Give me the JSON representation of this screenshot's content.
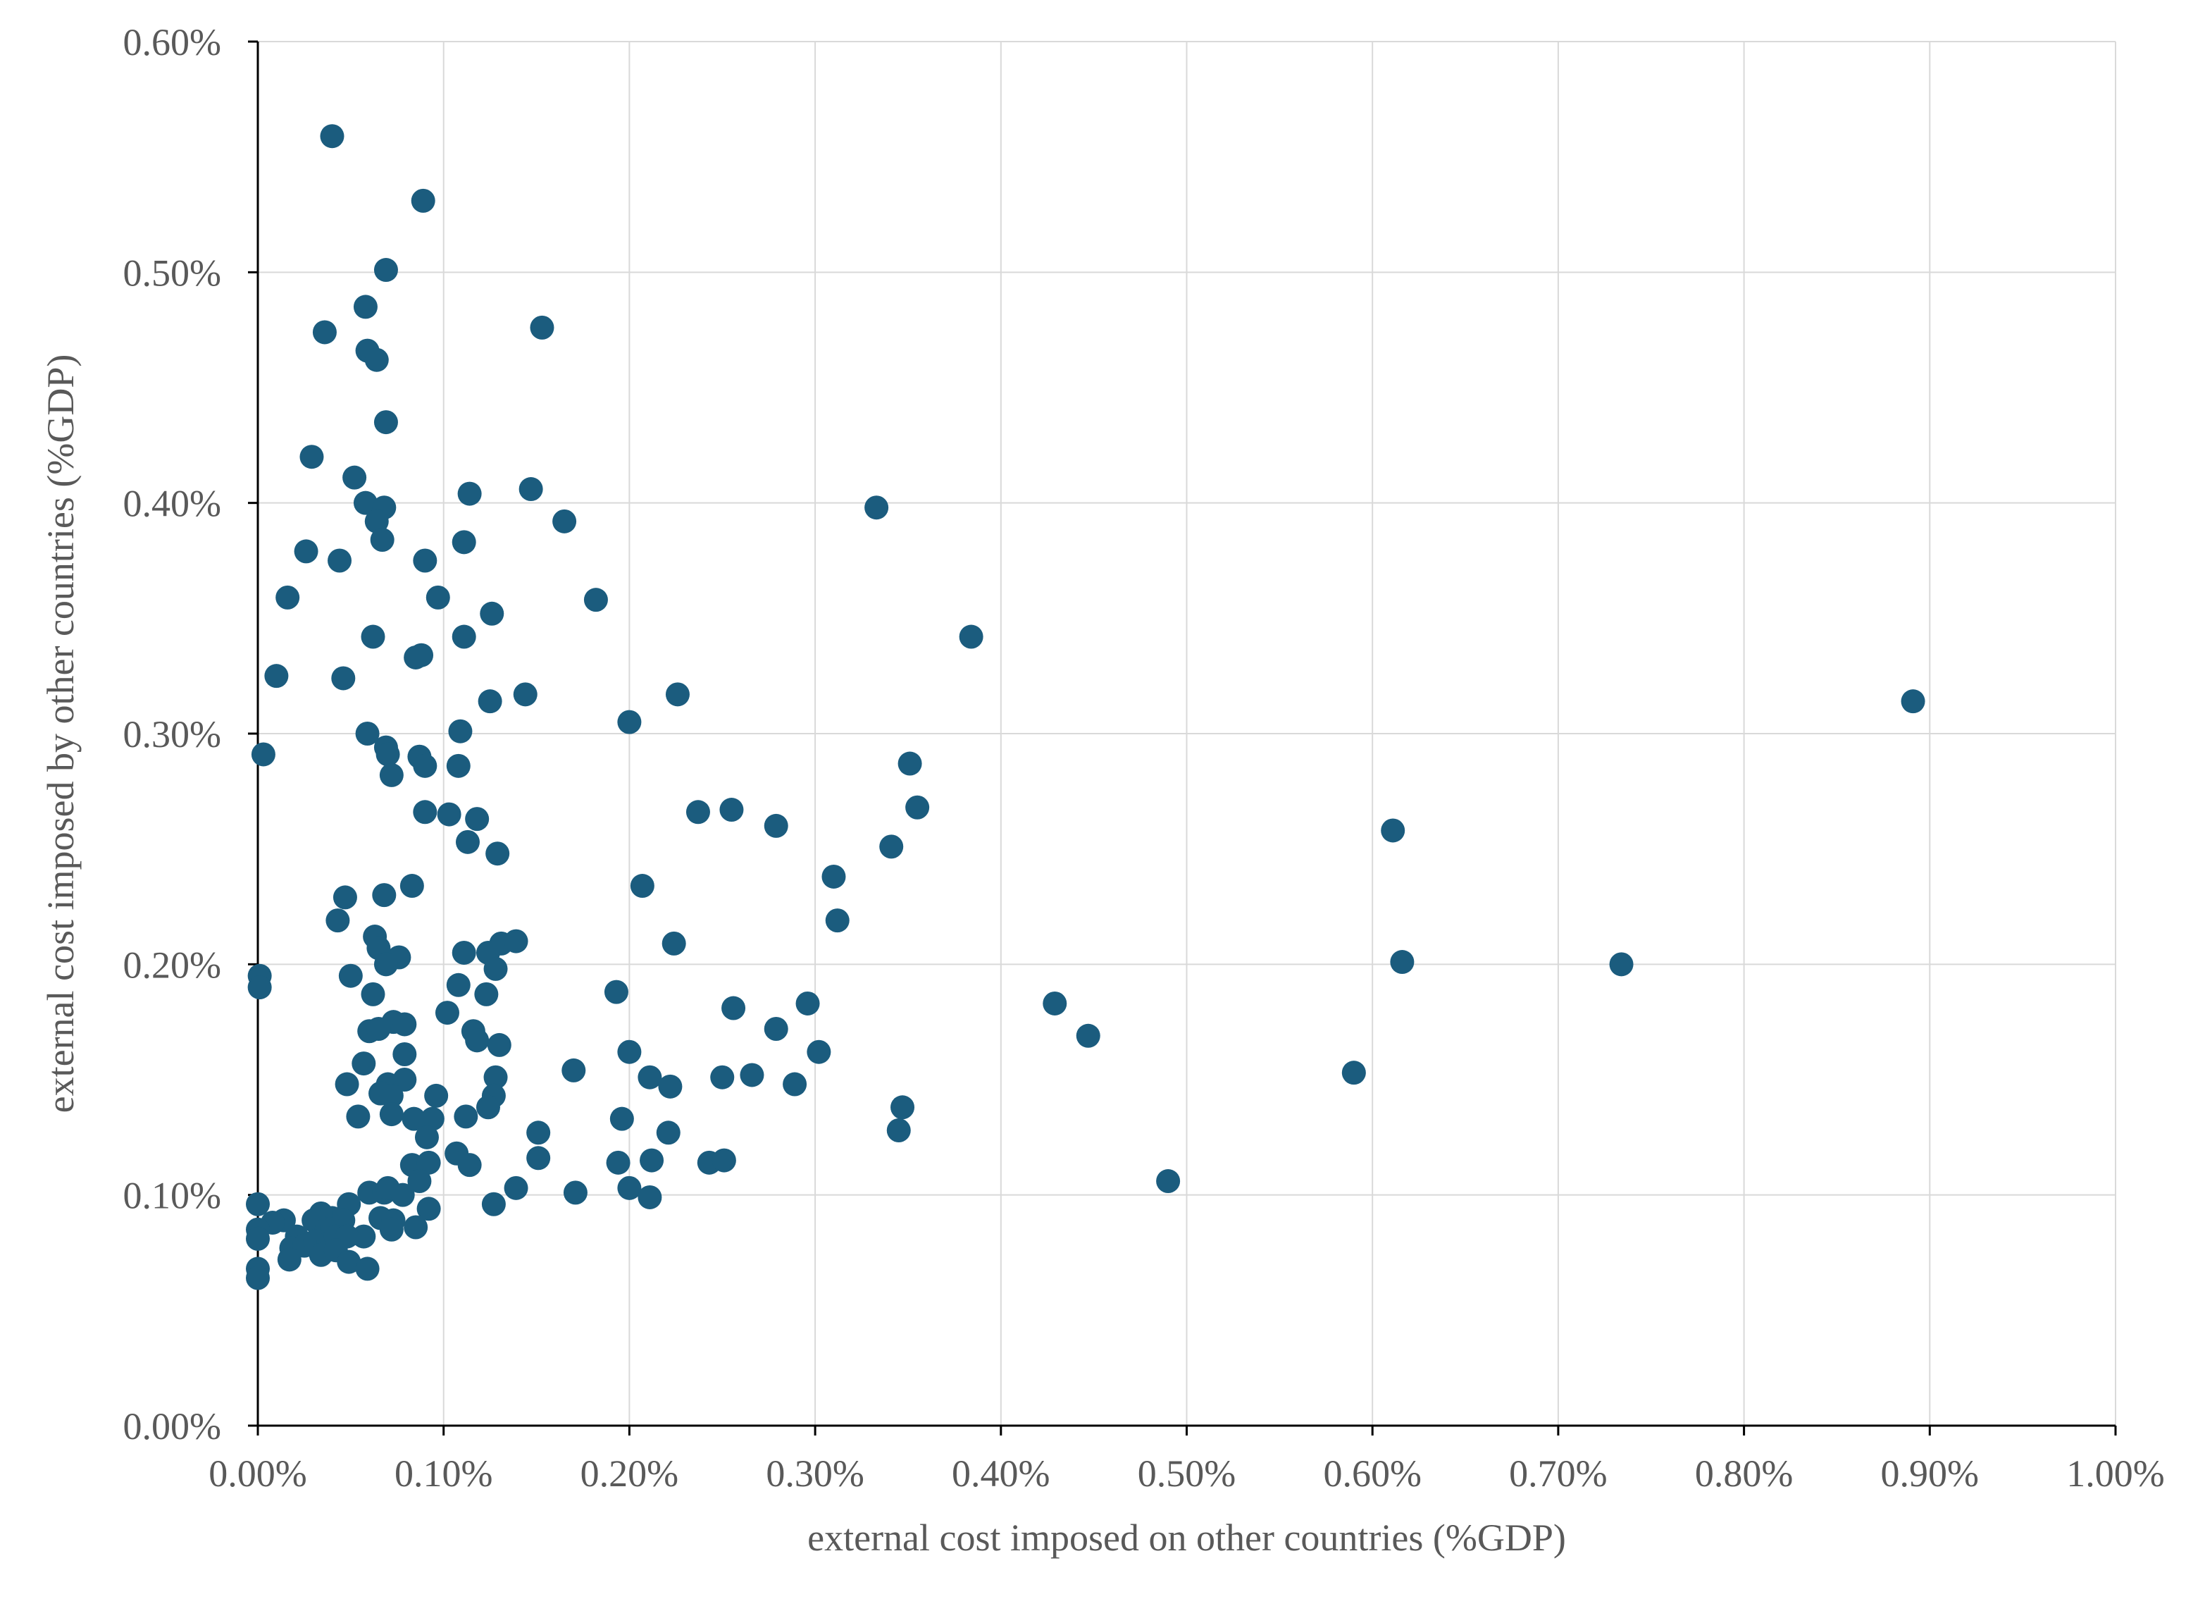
{
  "chart_data": {
    "type": "scatter",
    "title": "",
    "xlabel": "external cost imposed on other countries (%GDP)",
    "ylabel": "external cost imposed by other countries (%GDP)",
    "xlim": [
      0,
      1.0
    ],
    "ylim": [
      0,
      0.6
    ],
    "x_ticks": [
      0,
      0.1,
      0.2,
      0.3,
      0.4,
      0.5,
      0.6,
      0.7,
      0.8,
      0.9,
      1.0
    ],
    "y_ticks": [
      0,
      0.1,
      0.2,
      0.3,
      0.4,
      0.5,
      0.6
    ],
    "x_tick_labels": [
      "0.00%",
      "0.10%",
      "0.20%",
      "0.30%",
      "0.40%",
      "0.50%",
      "0.60%",
      "0.70%",
      "0.80%",
      "0.90%",
      "1.00%"
    ],
    "y_tick_labels": [
      "0.00%",
      "0.10%",
      "0.20%",
      "0.30%",
      "0.40%",
      "0.50%",
      "0.60%"
    ],
    "grid": true,
    "legend": "none",
    "marker_color": "#1b5c7e",
    "points": [
      [
        0.04,
        0.559
      ],
      [
        0.089,
        0.531
      ],
      [
        0.069,
        0.501
      ],
      [
        0.058,
        0.485
      ],
      [
        0.036,
        0.474
      ],
      [
        0.153,
        0.476
      ],
      [
        0.059,
        0.466
      ],
      [
        0.064,
        0.462
      ],
      [
        0.069,
        0.435
      ],
      [
        0.029,
        0.42
      ],
      [
        0.052,
        0.411
      ],
      [
        0.058,
        0.4
      ],
      [
        0.068,
        0.398
      ],
      [
        0.114,
        0.404
      ],
      [
        0.147,
        0.406
      ],
      [
        0.064,
        0.392
      ],
      [
        0.067,
        0.384
      ],
      [
        0.111,
        0.383
      ],
      [
        0.165,
        0.392
      ],
      [
        0.026,
        0.379
      ],
      [
        0.044,
        0.375
      ],
      [
        0.09,
        0.375
      ],
      [
        0.016,
        0.359
      ],
      [
        0.097,
        0.359
      ],
      [
        0.182,
        0.358
      ],
      [
        0.126,
        0.352
      ],
      [
        0.062,
        0.342
      ],
      [
        0.111,
        0.342
      ],
      [
        0.333,
        0.398
      ],
      [
        0.384,
        0.342
      ],
      [
        0.01,
        0.325
      ],
      [
        0.046,
        0.324
      ],
      [
        0.085,
        0.333
      ],
      [
        0.088,
        0.334
      ],
      [
        0.125,
        0.314
      ],
      [
        0.144,
        0.317
      ],
      [
        0.2,
        0.305
      ],
      [
        0.226,
        0.317
      ],
      [
        0.891,
        0.314
      ],
      [
        0.059,
        0.3
      ],
      [
        0.109,
        0.301
      ],
      [
        0.003,
        0.291
      ],
      [
        0.069,
        0.294
      ],
      [
        0.07,
        0.291
      ],
      [
        0.087,
        0.29
      ],
      [
        0.09,
        0.286
      ],
      [
        0.108,
        0.286
      ],
      [
        0.072,
        0.282
      ],
      [
        0.351,
        0.287
      ],
      [
        0.09,
        0.266
      ],
      [
        0.103,
        0.265
      ],
      [
        0.118,
        0.263
      ],
      [
        0.237,
        0.266
      ],
      [
        0.255,
        0.267
      ],
      [
        0.355,
        0.268
      ],
      [
        0.279,
        0.26
      ],
      [
        0.611,
        0.258
      ],
      [
        0.113,
        0.253
      ],
      [
        0.129,
        0.248
      ],
      [
        0.341,
        0.251
      ],
      [
        0.31,
        0.238
      ],
      [
        0.083,
        0.234
      ],
      [
        0.207,
        0.234
      ],
      [
        0.047,
        0.229
      ],
      [
        0.068,
        0.23
      ],
      [
        0.043,
        0.219
      ],
      [
        0.312,
        0.219
      ],
      [
        0.063,
        0.212
      ],
      [
        0.065,
        0.207
      ],
      [
        0.111,
        0.205
      ],
      [
        0.124,
        0.205
      ],
      [
        0.131,
        0.209
      ],
      [
        0.139,
        0.21
      ],
      [
        0.224,
        0.209
      ],
      [
        0.076,
        0.203
      ],
      [
        0.069,
        0.2
      ],
      [
        0.616,
        0.201
      ],
      [
        0.734,
        0.2
      ],
      [
        0.001,
        0.195
      ],
      [
        0.05,
        0.195
      ],
      [
        0.128,
        0.198
      ],
      [
        0.001,
        0.19
      ],
      [
        0.108,
        0.191
      ],
      [
        0.193,
        0.188
      ],
      [
        0.062,
        0.187
      ],
      [
        0.123,
        0.187
      ],
      [
        0.429,
        0.183
      ],
      [
        0.296,
        0.183
      ],
      [
        0.256,
        0.181
      ],
      [
        0.102,
        0.179
      ],
      [
        0.073,
        0.175
      ],
      [
        0.079,
        0.174
      ],
      [
        0.06,
        0.171
      ],
      [
        0.065,
        0.172
      ],
      [
        0.116,
        0.171
      ],
      [
        0.279,
        0.172
      ],
      [
        0.447,
        0.169
      ],
      [
        0.118,
        0.167
      ],
      [
        0.13,
        0.165
      ],
      [
        0.079,
        0.161
      ],
      [
        0.2,
        0.162
      ],
      [
        0.302,
        0.162
      ],
      [
        0.057,
        0.157
      ],
      [
        0.17,
        0.154
      ],
      [
        0.128,
        0.151
      ],
      [
        0.211,
        0.151
      ],
      [
        0.25,
        0.151
      ],
      [
        0.266,
        0.152
      ],
      [
        0.59,
        0.153
      ],
      [
        0.048,
        0.148
      ],
      [
        0.07,
        0.148
      ],
      [
        0.079,
        0.15
      ],
      [
        0.222,
        0.147
      ],
      [
        0.289,
        0.148
      ],
      [
        0.066,
        0.144
      ],
      [
        0.072,
        0.143
      ],
      [
        0.096,
        0.143
      ],
      [
        0.127,
        0.143
      ],
      [
        0.124,
        0.138
      ],
      [
        0.347,
        0.138
      ],
      [
        0.054,
        0.134
      ],
      [
        0.072,
        0.135
      ],
      [
        0.084,
        0.133
      ],
      [
        0.094,
        0.133
      ],
      [
        0.112,
        0.134
      ],
      [
        0.196,
        0.133
      ],
      [
        0.091,
        0.125
      ],
      [
        0.151,
        0.127
      ],
      [
        0.221,
        0.127
      ],
      [
        0.345,
        0.128
      ],
      [
        0.107,
        0.118
      ],
      [
        0.083,
        0.113
      ],
      [
        0.092,
        0.114
      ],
      [
        0.114,
        0.113
      ],
      [
        0.151,
        0.116
      ],
      [
        0.194,
        0.114
      ],
      [
        0.212,
        0.115
      ],
      [
        0.243,
        0.114
      ],
      [
        0.251,
        0.115
      ],
      [
        0.49,
        0.106
      ],
      [
        0.087,
        0.106
      ],
      [
        0.139,
        0.103
      ],
      [
        0.2,
        0.103
      ],
      [
        0.171,
        0.101
      ],
      [
        0.211,
        0.099
      ],
      [
        0.06,
        0.101
      ],
      [
        0.068,
        0.101
      ],
      [
        0.07,
        0.103
      ],
      [
        0.078,
        0.1
      ],
      [
        0.127,
        0.096
      ],
      [
        0.092,
        0.094
      ],
      [
        0.0,
        0.096
      ],
      [
        0.049,
        0.096
      ],
      [
        0.04,
        0.09
      ],
      [
        0.034,
        0.092
      ],
      [
        0.014,
        0.089
      ],
      [
        0.008,
        0.088
      ],
      [
        0.03,
        0.089
      ],
      [
        0.046,
        0.089
      ],
      [
        0.066,
        0.09
      ],
      [
        0.073,
        0.089
      ],
      [
        0.085,
        0.086
      ],
      [
        0.0,
        0.085
      ],
      [
        0.021,
        0.082
      ],
      [
        0.037,
        0.085
      ],
      [
        0.04,
        0.085
      ],
      [
        0.057,
        0.082
      ],
      [
        0.072,
        0.085
      ],
      [
        0.0,
        0.081
      ],
      [
        0.018,
        0.077
      ],
      [
        0.025,
        0.078
      ],
      [
        0.031,
        0.08
      ],
      [
        0.038,
        0.079
      ],
      [
        0.042,
        0.082
      ],
      [
        0.048,
        0.082
      ],
      [
        0.017,
        0.072
      ],
      [
        0.034,
        0.074
      ],
      [
        0.042,
        0.076
      ],
      [
        0.049,
        0.071
      ],
      [
        0.0,
        0.068
      ],
      [
        0.059,
        0.068
      ],
      [
        0.0,
        0.064
      ]
    ]
  }
}
